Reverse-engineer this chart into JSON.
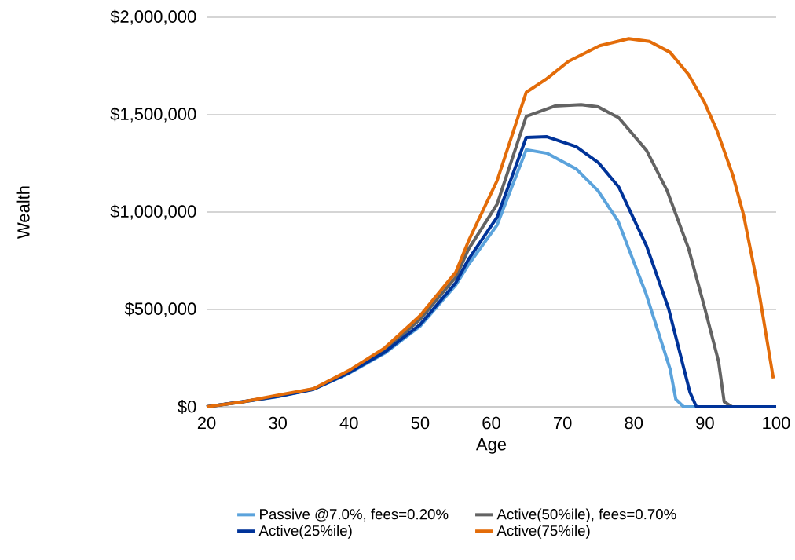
{
  "chart_data": {
    "type": "line",
    "xlabel": "Age",
    "ylabel": "Wealth",
    "xlim": [
      20,
      100
    ],
    "xticks": [
      20,
      30,
      40,
      50,
      60,
      70,
      80,
      90,
      100
    ],
    "ylim": [
      0,
      2000000
    ],
    "yticks": [
      {
        "value": 0,
        "label": "$0"
      },
      {
        "value": 500000,
        "label": "$500,000"
      },
      {
        "value": 1000000,
        "label": "$1,000,000"
      },
      {
        "value": 1500000,
        "label": "$1,500,000"
      },
      {
        "value": 2000000,
        "label": "$2,000,000"
      }
    ],
    "grid": "y",
    "legend": "bottom",
    "marker": "none",
    "line_style": "solid",
    "series": [
      {
        "name": "Passive @7.0%, fees=0.20%",
        "color": "#5ba3dc",
        "x": [
          20,
          25,
          30,
          35,
          40,
          45,
          50,
          55,
          56.8,
          60.8,
          64.9,
          67.8,
          71.9,
          75.0,
          77.8,
          81.7,
          85.1,
          85.9,
          87.0,
          100
        ],
        "values": [
          0,
          25000,
          52000,
          90000,
          172000,
          275000,
          415000,
          625000,
          731000,
          933000,
          1320000,
          1302000,
          1222000,
          1108000,
          953000,
          583000,
          194000,
          39000,
          0,
          0
        ]
      },
      {
        "name": "Active(50%ile), fees=0.70%",
        "color": "#636363",
        "x": [
          20,
          25,
          30,
          35,
          40,
          45,
          50,
          55,
          56.8,
          60.8,
          64.9,
          68.9,
          72.6,
          75.0,
          77.9,
          81.8,
          84.7,
          87.7,
          89.9,
          91.9,
          92.7,
          93.8,
          100
        ],
        "values": [
          0,
          25000,
          55000,
          92000,
          180000,
          290000,
          450000,
          665000,
          810000,
          1040000,
          1491000,
          1544000,
          1551000,
          1540000,
          1484000,
          1316000,
          1108000,
          812000,
          516000,
          234000,
          25000,
          0,
          0
        ]
      },
      {
        "name": "Active(25%ile)",
        "color": "#003399",
        "x": [
          20,
          25,
          30,
          35,
          40,
          45,
          50,
          55,
          56.8,
          60.8,
          64.9,
          67.8,
          71.9,
          75.0,
          77.9,
          81.8,
          84.9,
          87.9,
          88.8,
          100
        ],
        "values": [
          0,
          null,
          53000,
          90000,
          175000,
          280000,
          423000,
          637000,
          758000,
          973000,
          1383000,
          1387000,
          1336000,
          1255000,
          1128000,
          825000,
          503000,
          73000,
          0,
          0
        ]
      },
      {
        "name": "Active(75%ile)",
        "color": "#e36c09",
        "x": [
          20,
          25,
          30,
          35,
          40,
          45,
          50,
          55,
          56.8,
          60.8,
          64.9,
          67.8,
          70.8,
          75.2,
          79.3,
          82.2,
          85.1,
          87.7,
          89.9,
          91.7,
          93.9,
          95.4,
          97.6,
          99.6
        ],
        "values": [
          0,
          25000,
          60000,
          93000,
          187000,
          302000,
          469000,
          691000,
          852000,
          1161000,
          1615000,
          1685000,
          1773000,
          1854000,
          1890000,
          1876000,
          1820000,
          1706000,
          1565000,
          1417000,
          1190000,
          988000,
          585000,
          146000
        ]
      }
    ]
  }
}
